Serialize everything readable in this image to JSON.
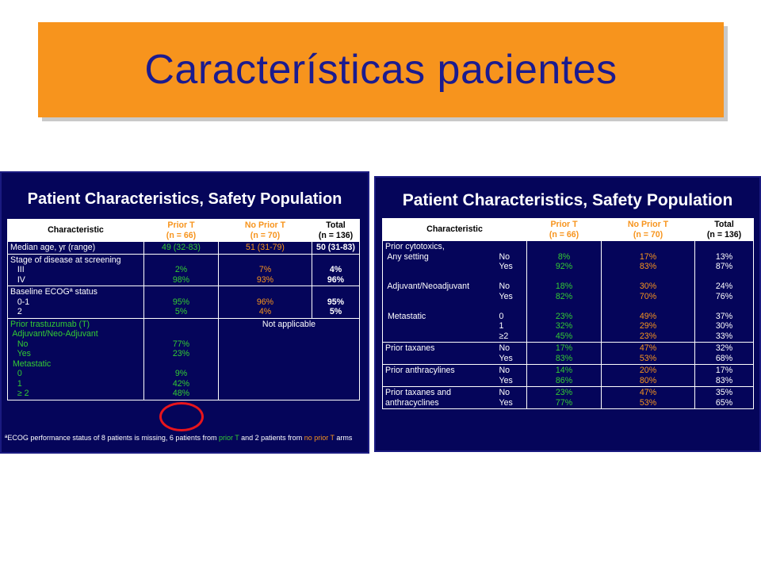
{
  "title": "Características pacientes",
  "left_slide": {
    "title": "Patient Characteristics, Safety Population",
    "headers": [
      "Characteristic",
      "Prior T\n(n = 66)",
      "No Prior T\n(n = 70)",
      "Total\n(n = 136)"
    ],
    "rows": [
      {
        "label": [
          "Median age, yr (range)"
        ],
        "prior": [
          "49 (32-83)"
        ],
        "noprior": [
          "51 (31-79)"
        ],
        "total": [
          "50 (31-83)"
        ]
      },
      {
        "label": [
          "Stage of disease at screening",
          "   III",
          "   IV"
        ],
        "prior": [
          "",
          "2%",
          "98%"
        ],
        "noprior": [
          "",
          "7%",
          "93%"
        ],
        "total": [
          "",
          "4%",
          "96%"
        ]
      },
      {
        "label": [
          "Baseline ECOGª status",
          "   0-1",
          "   2"
        ],
        "prior": [
          "",
          "95%",
          "5%"
        ],
        "noprior": [
          "",
          "96%",
          "4%"
        ],
        "total": [
          "",
          "95%",
          "5%"
        ]
      },
      {
        "label": [
          "Prior trastuzumab (T)",
          " Adjuvant/Neo-Adjuvant",
          "   No",
          "   Yes",
          " Metastatic",
          "   0",
          "   1",
          "   ≥ 2"
        ],
        "prior": [
          "",
          "",
          "77%",
          "23%",
          "",
          "9%",
          "42%",
          "48%"
        ],
        "na": "Not applicable"
      }
    ],
    "footnote": {
      "a": "ªECOG performance status of 8 patients is missing, 6 patients from ",
      "b": "prior T",
      "c": " and 2 patients from ",
      "d": "no prior T",
      "e": " arms"
    }
  },
  "right_slide": {
    "title": "Patient Characteristics, Safety Population",
    "headers": [
      "Characteristic",
      "Prior T\n(n = 66)",
      "No Prior T\n(n = 70)",
      "Total\n(n = 136)"
    ],
    "rows": [
      {
        "label": [
          "Prior cytotoxics,",
          " Any setting",
          "",
          "",
          " Adjuvant/Neoadjuvant",
          "",
          "",
          " Metastatic",
          "",
          ""
        ],
        "sub": [
          "",
          "No",
          "Yes",
          "",
          "No",
          "Yes",
          "",
          "0",
          "1",
          "≥2"
        ],
        "prior": [
          "",
          "8%",
          "92%",
          "",
          "18%",
          "82%",
          "",
          "23%",
          "32%",
          "45%"
        ],
        "noprior": [
          "",
          "17%",
          "83%",
          "",
          "30%",
          "70%",
          "",
          "49%",
          "29%",
          "23%"
        ],
        "total": [
          "",
          "13%",
          "87%",
          "",
          "24%",
          "76%",
          "",
          "37%",
          "30%",
          "33%"
        ]
      },
      {
        "label": [
          "Prior taxanes"
        ],
        "sub": [
          "No",
          "Yes"
        ],
        "prior": [
          "17%",
          "83%"
        ],
        "noprior": [
          "47%",
          "53%"
        ],
        "total": [
          "32%",
          "68%"
        ]
      },
      {
        "label": [
          "Prior anthracylines"
        ],
        "sub": [
          "No",
          "Yes"
        ],
        "prior": [
          "14%",
          "86%"
        ],
        "noprior": [
          "20%",
          "80%"
        ],
        "total": [
          "17%",
          "83%"
        ]
      },
      {
        "label": [
          "Prior taxanes and",
          "anthracyclines"
        ],
        "sub": [
          "No",
          "Yes"
        ],
        "prior": [
          "23%",
          "77%"
        ],
        "noprior": [
          "47%",
          "53%"
        ],
        "total": [
          "35%",
          "65%"
        ]
      }
    ]
  }
}
